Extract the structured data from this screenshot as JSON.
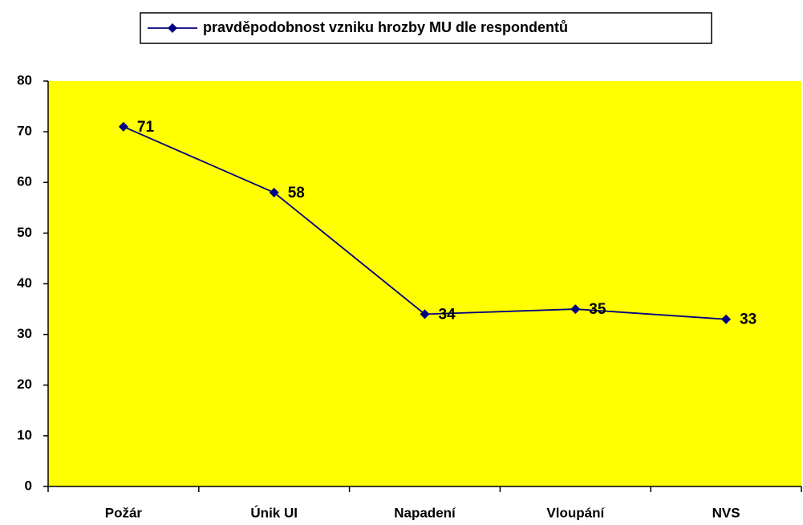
{
  "chart_data": {
    "type": "line",
    "categories": [
      "Požár",
      "Únik UI",
      "Napadení",
      "Vloupání",
      "NVS"
    ],
    "series": [
      {
        "name": "pravděpodobnost vzniku hrozby MU dle respondentů",
        "color": "#000080",
        "values": [
          71,
          58,
          34,
          35,
          33
        ]
      }
    ],
    "ylim": [
      0,
      80
    ],
    "yticks": [
      0,
      10,
      20,
      30,
      40,
      50,
      60,
      70,
      80
    ],
    "plot_background": "#ffff00",
    "grid": false
  }
}
